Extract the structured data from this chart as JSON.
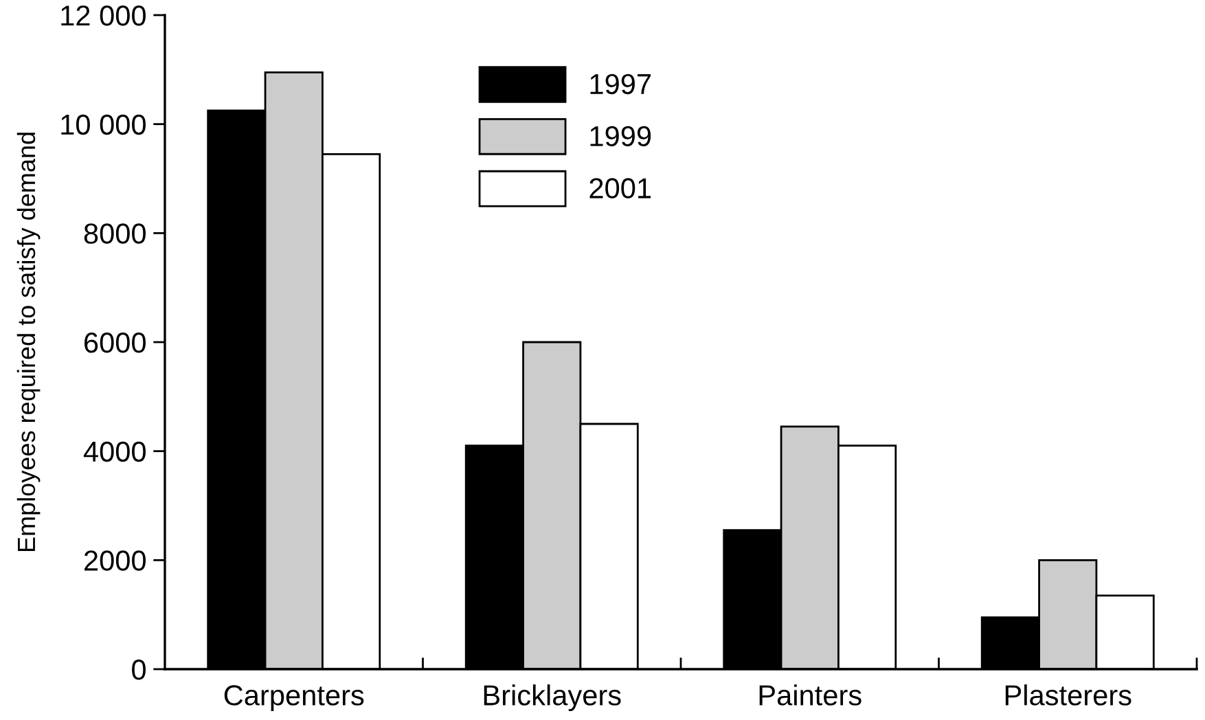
{
  "chart_data": {
    "type": "bar",
    "ylabel": "Employees required to satisfy demand",
    "categories": [
      "Carpenters",
      "Bricklayers",
      "Painters",
      "Plasterers"
    ],
    "series": [
      {
        "name": "1997",
        "color": "#000000",
        "values": [
          10250,
          4100,
          2550,
          950
        ]
      },
      {
        "name": "1999",
        "color": "#cccccc",
        "values": [
          10950,
          6000,
          4450,
          2000
        ]
      },
      {
        "name": "2001",
        "color": "#ffffff",
        "values": [
          9450,
          4500,
          4100,
          1350
        ]
      }
    ],
    "ylim": [
      0,
      12000
    ],
    "yticks": [
      0,
      2000,
      4000,
      6000,
      8000,
      {
        "value": 10000,
        "label": "10 000"
      },
      {
        "value": 12000,
        "label": "12 000"
      }
    ],
    "legend": "top",
    "grid": false
  }
}
